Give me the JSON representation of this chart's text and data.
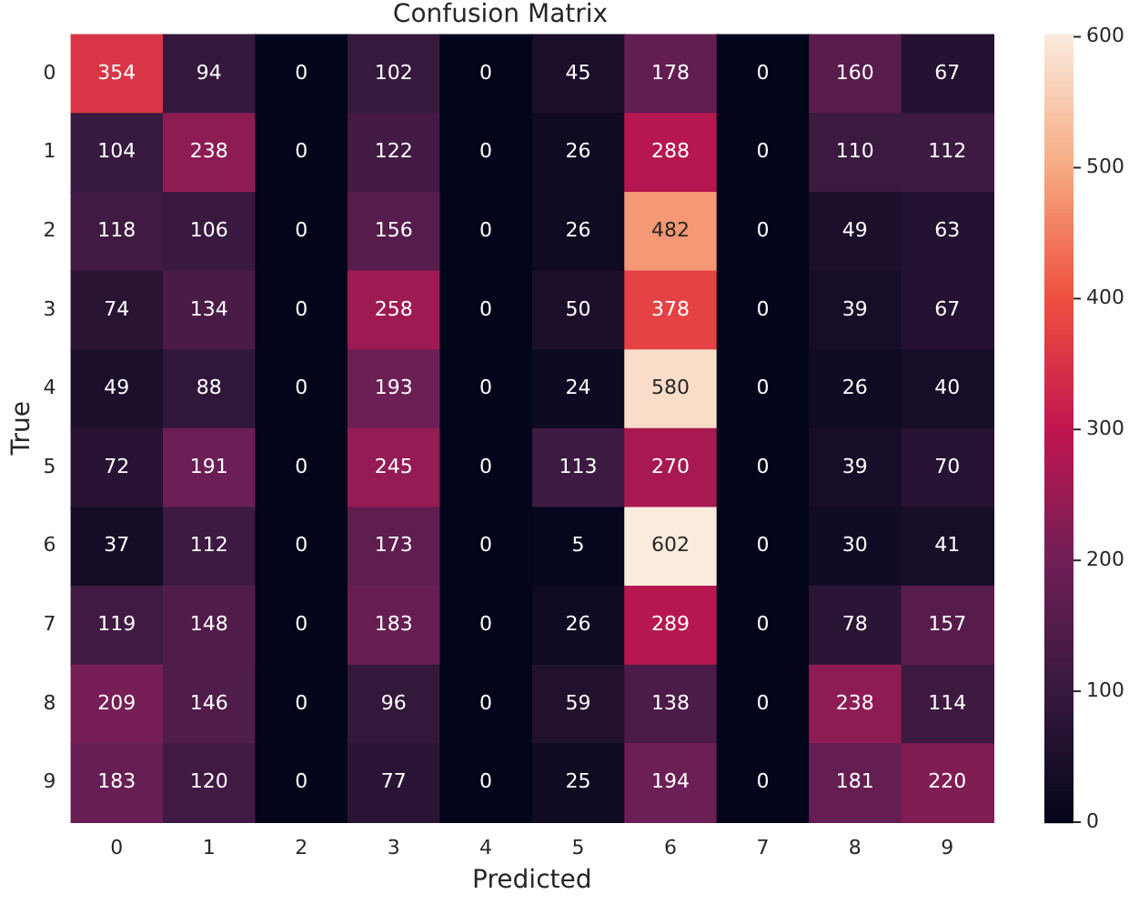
{
  "chart_data": {
    "type": "heatmap",
    "title": "Confusion Matrix",
    "xlabel": "Predicted",
    "ylabel": "True",
    "categories": [
      "0",
      "1",
      "2",
      "3",
      "4",
      "5",
      "6",
      "7",
      "8",
      "9"
    ],
    "y_categories": [
      "0",
      "1",
      "2",
      "3",
      "4",
      "5",
      "6",
      "7",
      "8",
      "9"
    ],
    "cells": [
      [
        354,
        94,
        0,
        102,
        0,
        45,
        178,
        0,
        160,
        67
      ],
      [
        104,
        238,
        0,
        122,
        0,
        26,
        288,
        0,
        110,
        112
      ],
      [
        118,
        106,
        0,
        156,
        0,
        26,
        482,
        0,
        49,
        63
      ],
      [
        74,
        134,
        0,
        258,
        0,
        50,
        378,
        0,
        39,
        67
      ],
      [
        49,
        88,
        0,
        193,
        0,
        24,
        580,
        0,
        26,
        40
      ],
      [
        72,
        191,
        0,
        245,
        0,
        113,
        270,
        0,
        39,
        70
      ],
      [
        37,
        112,
        0,
        173,
        0,
        5,
        602,
        0,
        30,
        41
      ],
      [
        119,
        148,
        0,
        183,
        0,
        26,
        289,
        0,
        78,
        157
      ],
      [
        209,
        146,
        0,
        96,
        0,
        59,
        138,
        0,
        238,
        114
      ],
      [
        183,
        120,
        0,
        77,
        0,
        25,
        194,
        0,
        181,
        220
      ]
    ],
    "clim": [
      0,
      602
    ],
    "cticks": [
      0,
      100,
      200,
      300,
      400,
      500,
      600
    ],
    "data_labels": true
  }
}
